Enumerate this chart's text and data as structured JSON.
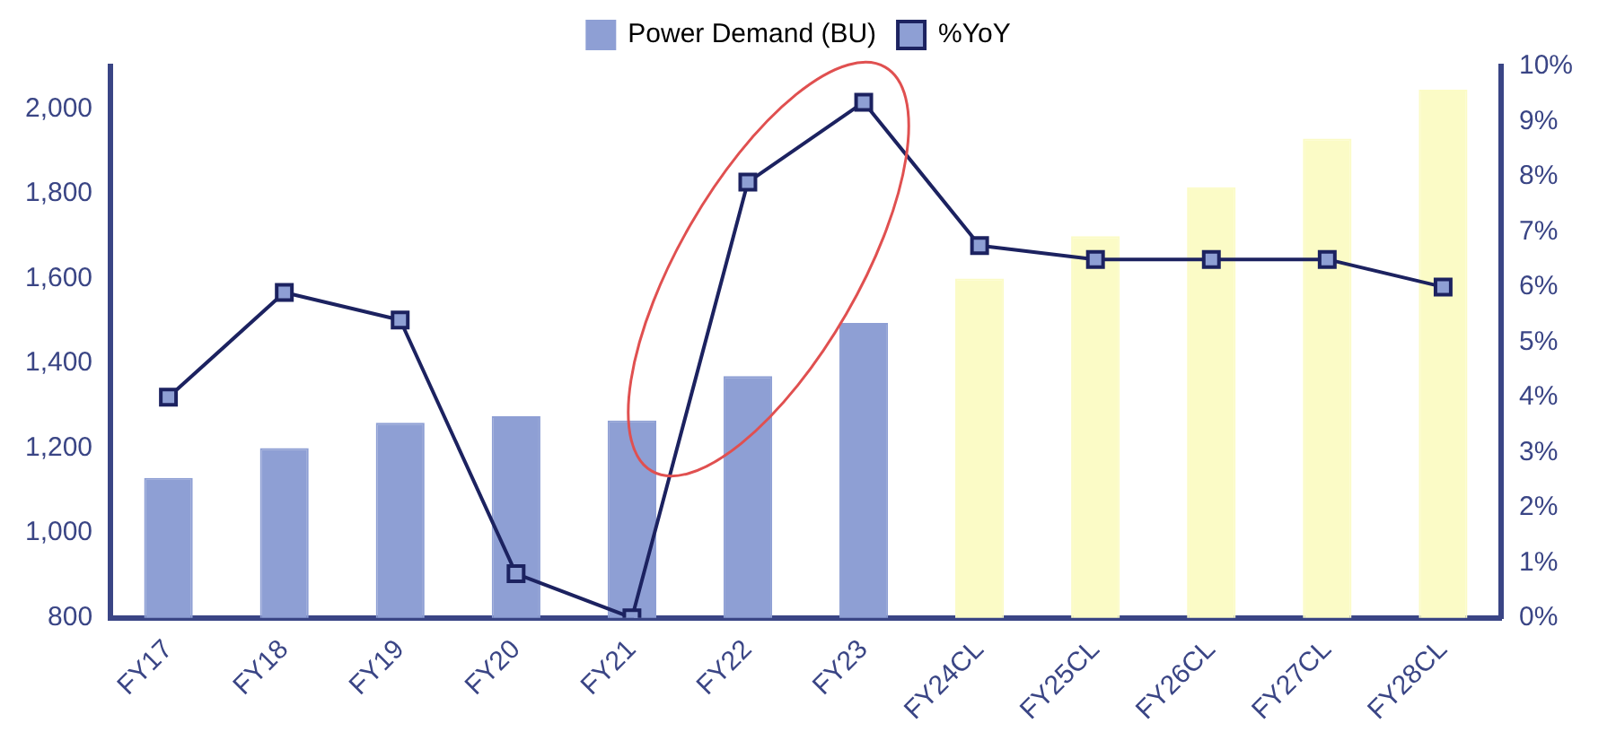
{
  "chart_data": {
    "type": "bar",
    "categories": [
      "FY17",
      "FY18",
      "FY19",
      "FY20",
      "FY21",
      "FY22",
      "FY23",
      "FY24CL",
      "FY25CL",
      "FY26CL",
      "FY27CL",
      "FY28CL"
    ],
    "series": [
      {
        "name": "Power Demand (BU)",
        "color": "#8e9fd4",
        "colors": [
          "#8e9fd4",
          "#8e9fd4",
          "#8e9fd4",
          "#8e9fd4",
          "#8e9fd4",
          "#8e9fd4",
          "#8e9fd4",
          "#fbfbc6",
          "#fbfbc6",
          "#fbfbc6",
          "#fbfbc6",
          "#fbfbc6"
        ],
        "values": [
          1130,
          1200,
          1260,
          1275,
          1265,
          1370,
          1495,
          1600,
          1700,
          1815,
          1930,
          2045
        ]
      },
      {
        "name": "%YoY",
        "type": "line",
        "axis": "y2",
        "color": "#1c2260",
        "marker": "square",
        "values": [
          4.0,
          5.9,
          5.4,
          0.8,
          0.0,
          7.9,
          9.35,
          6.75,
          6.5,
          6.5,
          6.5,
          6.0
        ]
      }
    ],
    "ylim": [
      800,
      2100
    ],
    "yticks": [
      {
        "value": 800,
        "label": "800"
      },
      {
        "value": 1000,
        "label": "1,000"
      },
      {
        "value": 1200,
        "label": "1,200"
      },
      {
        "value": 1400,
        "label": "1,400"
      },
      {
        "value": 1600,
        "label": "1,600"
      },
      {
        "value": 1800,
        "label": "1,800"
      },
      {
        "value": 2000,
        "label": "2,000"
      }
    ],
    "y2lim": [
      0,
      10
    ],
    "y2ticks": [
      {
        "value": 0,
        "label": "0%"
      },
      {
        "value": 1,
        "label": "1%"
      },
      {
        "value": 2,
        "label": "2%"
      },
      {
        "value": 3,
        "label": "3%"
      },
      {
        "value": 4,
        "label": "4%"
      },
      {
        "value": 5,
        "label": "5%"
      },
      {
        "value": 6,
        "label": "6%"
      },
      {
        "value": 7,
        "label": "7%"
      },
      {
        "value": 8,
        "label": "8%"
      },
      {
        "value": 9,
        "label": "9%"
      },
      {
        "value": 10,
        "label": "10%"
      }
    ],
    "grid": false,
    "legend": "top"
  }
}
